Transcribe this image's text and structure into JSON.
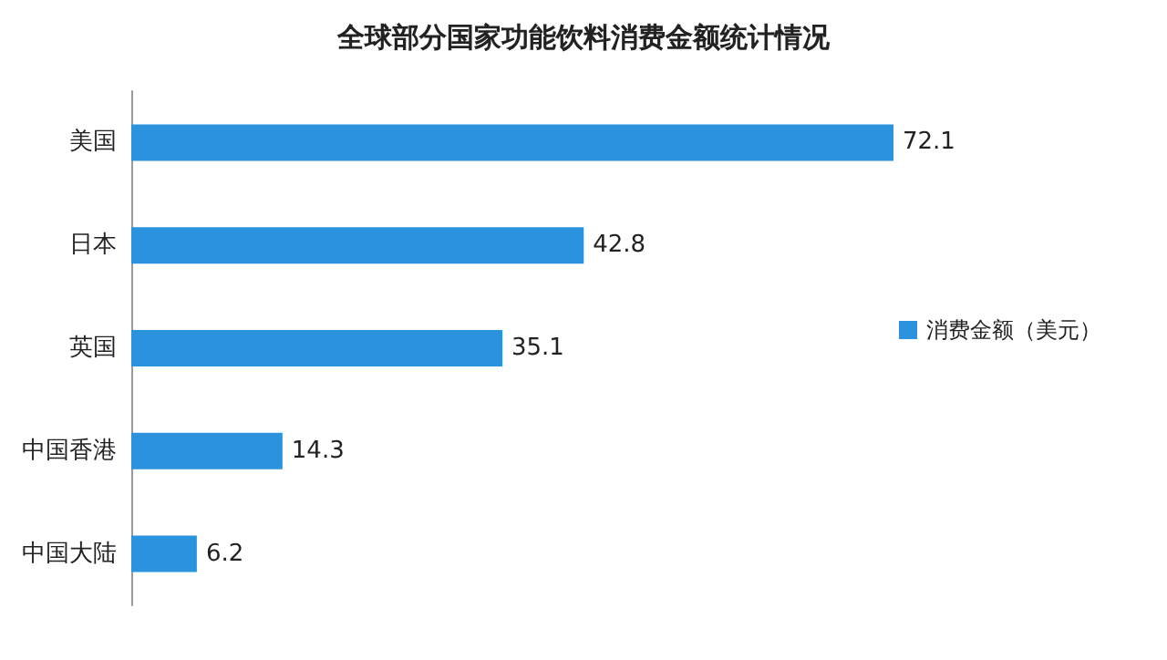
{
  "chart_data": {
    "type": "bar",
    "orientation": "horizontal",
    "title": "全球部分国家功能饮料消费金额统计情况",
    "categories": [
      "美国",
      "日本",
      "英国",
      "中国香港",
      "中国大陆"
    ],
    "series": [
      {
        "name": "消费金额（美元）",
        "color": "#2b93de",
        "values": [
          72.1,
          42.8,
          35.1,
          14.3,
          6.2
        ]
      }
    ],
    "data_labels": true,
    "legend": "right"
  }
}
